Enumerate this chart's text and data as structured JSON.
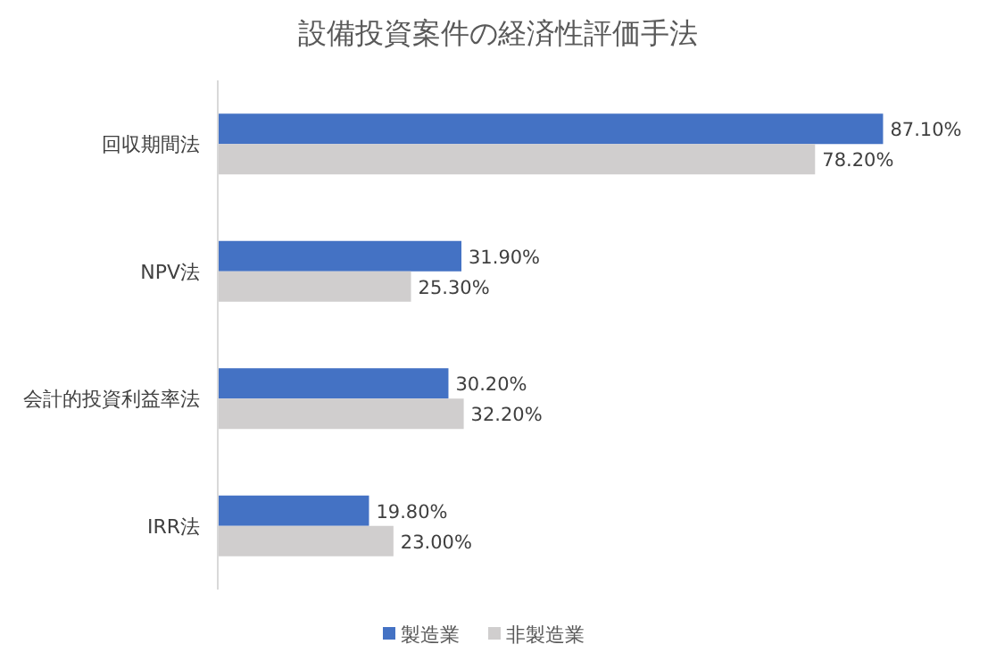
{
  "chart_data": {
    "type": "bar",
    "orientation": "horizontal",
    "title": "設備投資案件の経済性評価手法",
    "categories": [
      "回収期間法",
      "NPV法",
      "会計的投資利益率法",
      "IRR法"
    ],
    "series": [
      {
        "name": "製造業",
        "color": "#4472c4",
        "values": [
          87.1,
          31.9,
          30.2,
          19.8
        ],
        "value_labels": [
          "87.10%",
          "31.90%",
          "30.20%",
          "19.80%"
        ]
      },
      {
        "name": "非製造業",
        "color": "#d0cece",
        "values": [
          78.2,
          25.3,
          32.2,
          23.0
        ],
        "value_labels": [
          "78.20%",
          "25.30%",
          "32.20%",
          "23.00%"
        ]
      }
    ],
    "legend": "bottom"
  }
}
